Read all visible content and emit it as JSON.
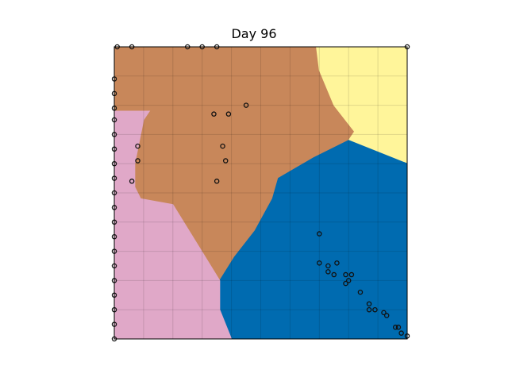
{
  "chart_data": {
    "type": "scatter",
    "title": "Day 96",
    "xlabel": "",
    "ylabel": "",
    "xlim": [
      0,
      1
    ],
    "ylim": [
      0,
      1
    ],
    "grid": true,
    "axis_ticks": false,
    "regions": [
      {
        "id": "brown-region",
        "color": "#c8875a",
        "polygon": [
          [
            0,
            1
          ],
          [
            0.69,
            1
          ],
          [
            0.7,
            0.92
          ],
          [
            0.75,
            0.8
          ],
          [
            0.82,
            0.71
          ],
          [
            0.8,
            0.68
          ],
          [
            0.68,
            0.62
          ],
          [
            0.56,
            0.55
          ],
          [
            0.54,
            0.48
          ],
          [
            0.48,
            0.37
          ],
          [
            0.41,
            0.28
          ],
          [
            0.36,
            0.2
          ],
          [
            0.2,
            0.46
          ],
          [
            0.09,
            0.48
          ],
          [
            0.07,
            0.52
          ],
          [
            0.07,
            0.6
          ],
          [
            0.1,
            0.75
          ],
          [
            0.12,
            0.78
          ],
          [
            0,
            0.78
          ]
        ]
      },
      {
        "id": "yellow-region",
        "color": "#fff59a",
        "polygon": [
          [
            0.69,
            1
          ],
          [
            1,
            1
          ],
          [
            1,
            0.6
          ],
          [
            0.8,
            0.68
          ],
          [
            0.82,
            0.71
          ],
          [
            0.75,
            0.8
          ],
          [
            0.7,
            0.92
          ]
        ]
      },
      {
        "id": "blue-region",
        "color": "#006bb0",
        "polygon": [
          [
            1,
            0.6
          ],
          [
            1,
            0
          ],
          [
            0.4,
            0
          ],
          [
            0.36,
            0.1
          ],
          [
            0.36,
            0.2
          ],
          [
            0.41,
            0.28
          ],
          [
            0.48,
            0.37
          ],
          [
            0.54,
            0.48
          ],
          [
            0.56,
            0.55
          ],
          [
            0.68,
            0.62
          ],
          [
            0.8,
            0.68
          ]
        ]
      },
      {
        "id": "pink-region",
        "color": "#e0a8c8",
        "polygon": [
          [
            0,
            0.78
          ],
          [
            0.12,
            0.78
          ],
          [
            0.1,
            0.75
          ],
          [
            0.07,
            0.6
          ],
          [
            0.07,
            0.52
          ],
          [
            0.09,
            0.48
          ],
          [
            0.2,
            0.46
          ],
          [
            0.36,
            0.2
          ],
          [
            0.36,
            0.1
          ],
          [
            0.4,
            0
          ],
          [
            0,
            0
          ]
        ]
      }
    ],
    "points": [
      [
        0.01,
        1.0
      ],
      [
        0.06,
        1.0
      ],
      [
        0.25,
        1.0
      ],
      [
        0.3,
        1.0
      ],
      [
        0.35,
        1.0
      ],
      [
        1.0,
        1.0
      ],
      [
        0.0,
        0.89
      ],
      [
        0.0,
        0.84
      ],
      [
        0.0,
        0.79
      ],
      [
        0.0,
        0.75
      ],
      [
        0.0,
        0.7
      ],
      [
        0.0,
        0.65
      ],
      [
        0.0,
        0.6
      ],
      [
        0.0,
        0.55
      ],
      [
        0.0,
        0.5
      ],
      [
        0.0,
        0.45
      ],
      [
        0.0,
        0.4
      ],
      [
        0.0,
        0.35
      ],
      [
        0.0,
        0.3
      ],
      [
        0.0,
        0.25
      ],
      [
        0.0,
        0.2
      ],
      [
        0.0,
        0.15
      ],
      [
        0.0,
        0.1
      ],
      [
        0.0,
        0.05
      ],
      [
        0.0,
        0.0
      ],
      [
        0.45,
        0.8
      ],
      [
        0.34,
        0.77
      ],
      [
        0.39,
        0.77
      ],
      [
        0.08,
        0.66
      ],
      [
        0.37,
        0.66
      ],
      [
        0.08,
        0.61
      ],
      [
        0.38,
        0.61
      ],
      [
        0.06,
        0.54
      ],
      [
        0.35,
        0.54
      ],
      [
        0.7,
        0.36
      ],
      [
        0.7,
        0.26
      ],
      [
        0.73,
        0.25
      ],
      [
        0.76,
        0.26
      ],
      [
        0.73,
        0.23
      ],
      [
        0.75,
        0.22
      ],
      [
        0.79,
        0.22
      ],
      [
        0.81,
        0.22
      ],
      [
        0.8,
        0.2
      ],
      [
        0.79,
        0.19
      ],
      [
        0.84,
        0.16
      ],
      [
        0.87,
        0.12
      ],
      [
        0.87,
        0.1
      ],
      [
        0.89,
        0.1
      ],
      [
        0.92,
        0.09
      ],
      [
        0.93,
        0.08
      ],
      [
        0.96,
        0.04
      ],
      [
        0.97,
        0.04
      ],
      [
        0.98,
        0.02
      ],
      [
        1.0,
        0.01
      ]
    ]
  }
}
